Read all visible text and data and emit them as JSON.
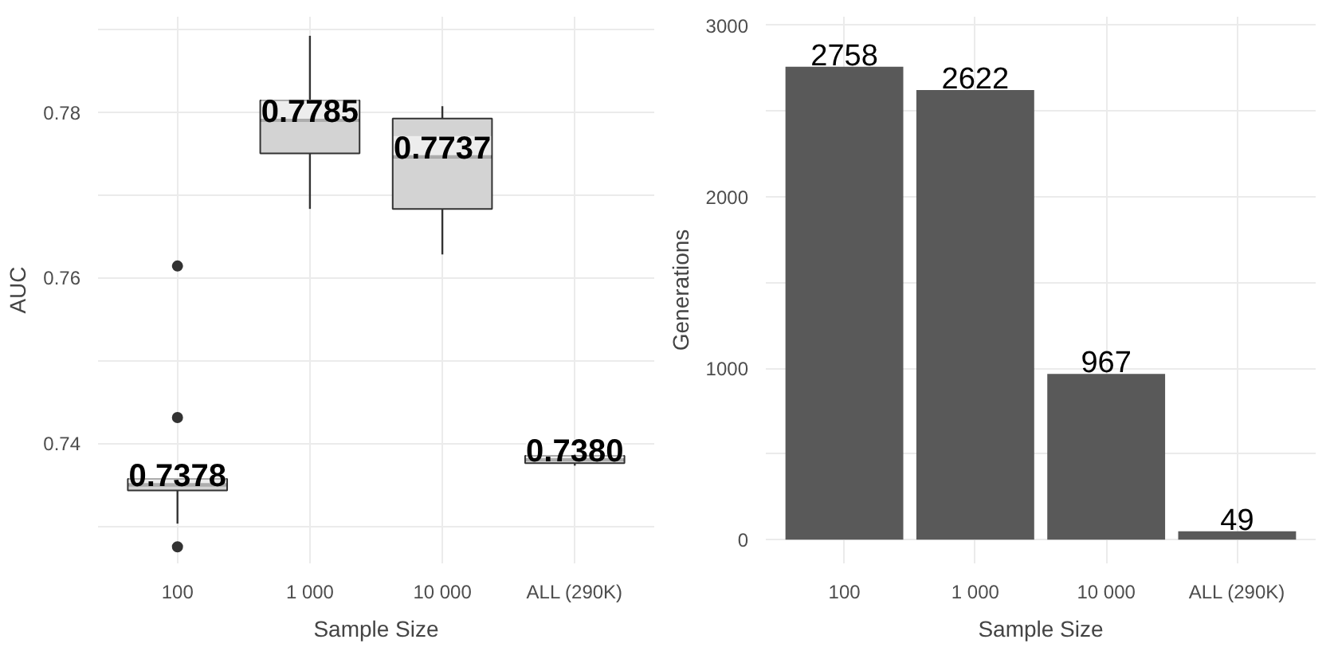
{
  "chart_data": [
    {
      "type": "box",
      "xlabel": "Sample Size",
      "ylabel": "AUC",
      "categories": [
        "100",
        "1 000",
        "10 000",
        "ALL (290K)"
      ],
      "color": "#d3d3d3",
      "boxes": [
        {
          "low": 0.7303,
          "q1": 0.7343,
          "median": 0.735,
          "q3": 0.7357,
          "high": 0.7357,
          "outliers": [
            0.7614,
            0.7431,
            0.7275
          ]
        },
        {
          "low": 0.7683,
          "q1": 0.775,
          "median": 0.779,
          "q3": 0.7814,
          "high": 0.7892
        },
        {
          "low": 0.7628,
          "q1": 0.7683,
          "median": 0.7746,
          "q3": 0.7792,
          "high": 0.7807
        },
        {
          "low": 0.7373,
          "q1": 0.7376,
          "median": 0.738,
          "q3": 0.7385,
          "high": 0.7387
        }
      ],
      "annotations": [
        "0.7378",
        "0.7785",
        "0.7737",
        "0.7380"
      ],
      "ylim": [
        0.7255,
        0.7915
      ],
      "yticks": [
        {
          "value": 0.73,
          "label": null
        },
        0.74,
        {
          "value": 0.75,
          "label": null
        },
        0.76,
        {
          "value": 0.77,
          "label": null
        },
        0.78,
        {
          "value": 0.79,
          "label": null
        }
      ],
      "grid": true
    },
    {
      "type": "bar",
      "xlabel": "Sample Size",
      "ylabel": "Generations",
      "categories": [
        "100",
        "1 000",
        "10 000",
        "ALL (290K)"
      ],
      "color": "#595959",
      "values": [
        2758,
        2622,
        967,
        49
      ],
      "data_labels": true,
      "ylim": [
        -138,
        3050
      ],
      "yticks": [
        0,
        {
          "value": 500,
          "label": null
        },
        1000,
        {
          "value": 1500,
          "label": null
        },
        2000,
        {
          "value": 2500,
          "label": null
        },
        3000
      ],
      "grid": true
    }
  ]
}
